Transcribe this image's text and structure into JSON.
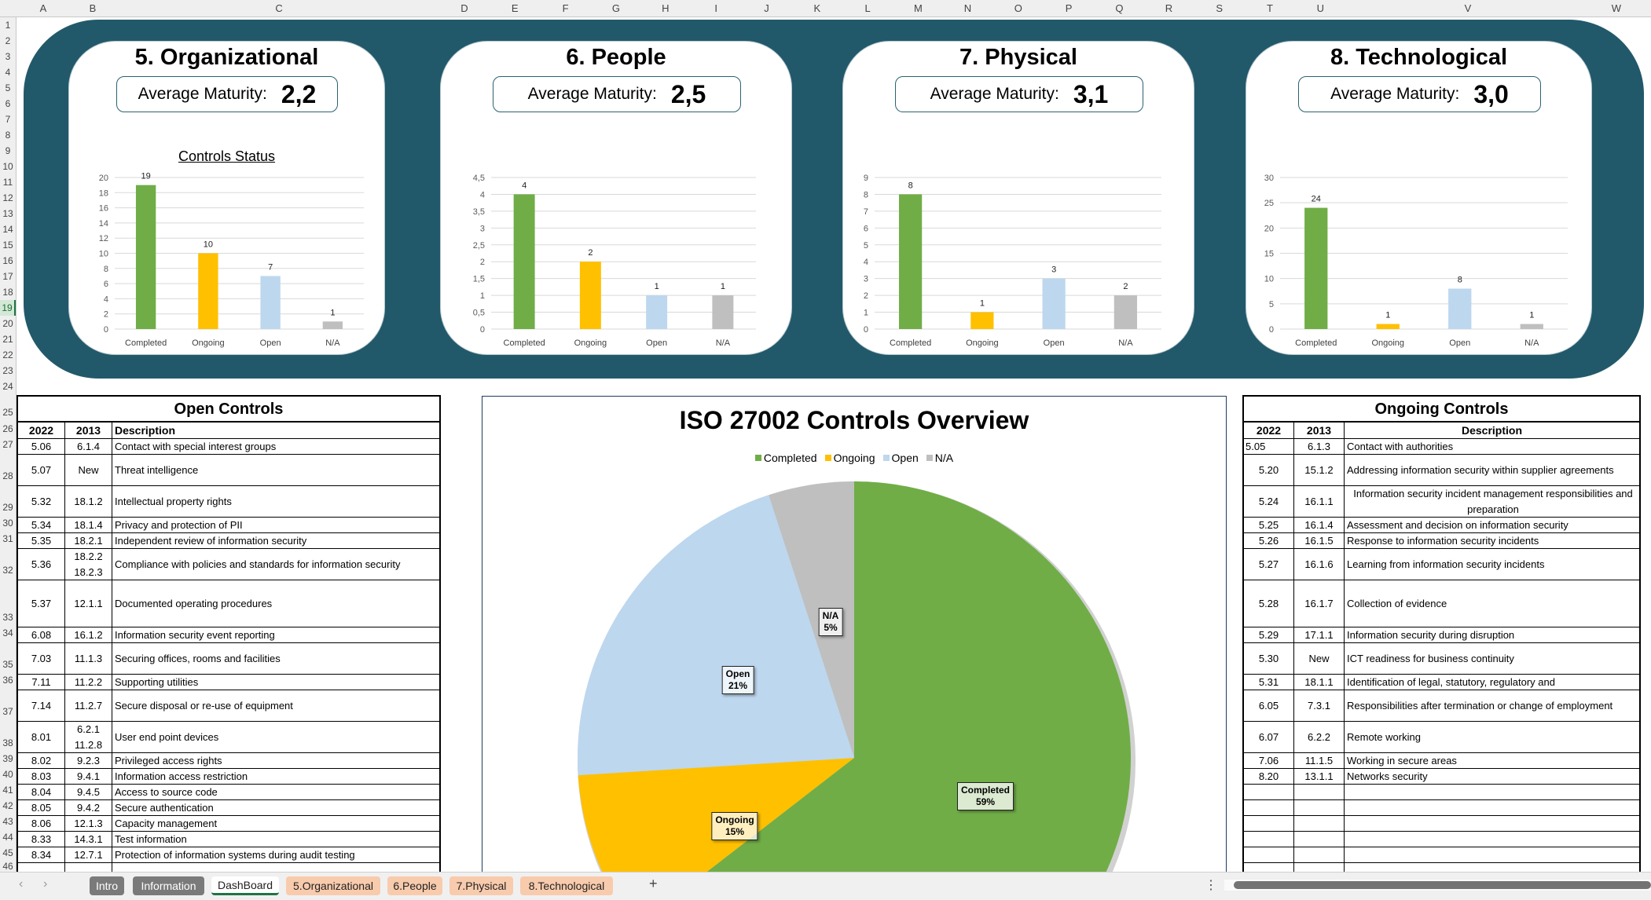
{
  "sheet": {
    "column_letters": [
      "A",
      "B",
      "C",
      "D",
      "E",
      "F",
      "G",
      "H",
      "I",
      "J",
      "K",
      "L",
      "M",
      "N",
      "O",
      "P",
      "Q",
      "R",
      "S",
      "T",
      "U",
      "V",
      "W"
    ],
    "row_numbers": [
      1,
      2,
      3,
      4,
      5,
      6,
      7,
      8,
      9,
      10,
      11,
      12,
      13,
      14,
      15,
      16,
      17,
      18,
      19,
      20,
      21,
      22,
      23,
      24,
      25,
      26,
      27,
      28,
      29,
      30,
      31,
      32,
      33,
      34,
      35,
      36,
      37,
      38,
      39,
      40,
      41,
      42,
      43,
      44,
      45,
      46
    ],
    "selected_row": 19
  },
  "colors": {
    "panel": "#22596a",
    "completed": "#70ad47",
    "ongoing": "#ffc000",
    "open": "#bdd7ee",
    "na": "#bfbfbf"
  },
  "cards": [
    {
      "title": "5. Organizational",
      "maturity_label": "Average Maturity:",
      "maturity_value": "2,2",
      "chart_title": "Controls Status",
      "chart_data": {
        "type": "bar",
        "categories": [
          "Completed",
          "Ongoing",
          "Open",
          "N/A"
        ],
        "values": [
          19,
          10,
          7,
          1
        ],
        "ylim": [
          0,
          20
        ],
        "yticks": [
          "0",
          "2",
          "4",
          "6",
          "8",
          "10",
          "12",
          "14",
          "16",
          "18",
          "20"
        ]
      }
    },
    {
      "title": "6. People",
      "maturity_label": "Average Maturity:",
      "maturity_value": "2,5",
      "chart_data": {
        "type": "bar",
        "categories": [
          "Completed",
          "Ongoing",
          "Open",
          "N/A"
        ],
        "values": [
          4,
          2,
          1,
          1
        ],
        "ylim": [
          0,
          4.5
        ],
        "yticks": [
          "0",
          "0,5",
          "1",
          "1,5",
          "2",
          "2,5",
          "3",
          "3,5",
          "4",
          "4,5"
        ]
      }
    },
    {
      "title": "7. Physical",
      "maturity_label": "Average Maturity:",
      "maturity_value": "3,1",
      "chart_data": {
        "type": "bar",
        "categories": [
          "Completed",
          "Ongoing",
          "Open",
          "N/A"
        ],
        "values": [
          8,
          1,
          3,
          2
        ],
        "ylim": [
          0,
          9
        ],
        "yticks": [
          "0",
          "1",
          "2",
          "3",
          "4",
          "5",
          "6",
          "7",
          "8",
          "9"
        ]
      }
    },
    {
      "title": "8. Technological",
      "maturity_label": "Average Maturity:",
      "maturity_value": "3,0",
      "chart_data": {
        "type": "bar",
        "categories": [
          "Completed",
          "Ongoing",
          "Open",
          "N/A"
        ],
        "values": [
          24,
          1,
          8,
          1
        ],
        "ylim": [
          0,
          30
        ],
        "yticks": [
          "0",
          "5",
          "10",
          "15",
          "20",
          "25",
          "30"
        ]
      }
    }
  ],
  "open_controls": {
    "title": "Open Controls",
    "headers": [
      "2022",
      "2013",
      "Description"
    ],
    "rows": [
      [
        "5.06",
        "6.1.4",
        "Contact with special interest groups"
      ],
      [
        "5.07",
        "New",
        "Threat intelligence"
      ],
      [
        "5.32",
        "18.1.2",
        "Intellectual property rights"
      ],
      [
        "5.34",
        "18.1.4",
        "Privacy and protection of PII"
      ],
      [
        "5.35",
        "18.2.1",
        "Independent review of information security"
      ],
      [
        "5.36",
        "18.2.2\n18.2.3",
        "Compliance with policies and standards for information security"
      ],
      [
        "5.37",
        "12.1.1",
        "Documented operating procedures"
      ],
      [
        "6.08",
        "16.1.2",
        "Information security event reporting"
      ],
      [
        "7.03",
        "11.1.3",
        "Securing offices, rooms and facilities"
      ],
      [
        "7.11",
        "11.2.2",
        "Supporting utilities"
      ],
      [
        "7.14",
        "11.2.7",
        "Secure disposal or re-use of equipment"
      ],
      [
        "8.01",
        "6.2.1\n11.2.8",
        "User end point devices"
      ],
      [
        "8.02",
        "9.2.3",
        "Privileged access rights"
      ],
      [
        "8.03",
        "9.4.1",
        "Information access restriction"
      ],
      [
        "8.04",
        "9.4.5",
        "Access to source code"
      ],
      [
        "8.05",
        "9.4.2",
        "Secure authentication"
      ],
      [
        "8.06",
        "12.1.3",
        "Capacity management"
      ],
      [
        "8.33",
        "14.3.1",
        "Test information"
      ],
      [
        "8.34",
        "12.7.1",
        "Protection of information systems during audit testing"
      ],
      [
        "",
        "",
        ""
      ]
    ]
  },
  "ongoing_controls": {
    "title": "Ongoing Controls",
    "headers": [
      "2022",
      "2013",
      "Description"
    ],
    "rows": [
      [
        "5.05",
        "6.1.3",
        "Contact with authorities"
      ],
      [
        "5.20",
        "15.1.2",
        "Addressing information security within supplier agreements"
      ],
      [
        "5.24",
        "16.1.1",
        "Information security incident management responsibilities and preparation"
      ],
      [
        "5.25",
        "16.1.4",
        "Assessment and decision on information security"
      ],
      [
        "5.26",
        "16.1.5",
        "Response to information security incidents"
      ],
      [
        "5.27",
        "16.1.6",
        "Learning from information security incidents"
      ],
      [
        "5.28",
        "16.1.7",
        "Collection of evidence"
      ],
      [
        "5.29",
        "17.1.1",
        "Information security during disruption"
      ],
      [
        "5.30",
        "New",
        "ICT readiness for business continuity"
      ],
      [
        "5.31",
        "18.1.1",
        "Identification of legal, statutory, regulatory and"
      ],
      [
        "6.05",
        "7.3.1",
        "Responsibilities after termination or change of employment"
      ],
      [
        "6.07",
        "6.2.2",
        "Remote working"
      ],
      [
        "7.06",
        "11.1.5",
        "Working in secure areas"
      ],
      [
        "8.20",
        "13.1.1",
        "Networks security"
      ],
      [
        "",
        "",
        ""
      ],
      [
        "",
        "",
        ""
      ],
      [
        "",
        "",
        ""
      ],
      [
        "",
        "",
        ""
      ],
      [
        "",
        "",
        ""
      ],
      [
        "",
        "",
        ""
      ]
    ]
  },
  "pie": {
    "title": "ISO 27002 Controls Overview",
    "chart_data": {
      "type": "pie",
      "categories": [
        "Completed",
        "Ongoing",
        "Open",
        "N/A"
      ],
      "values": [
        59,
        15,
        21,
        5
      ],
      "labels": [
        "Completed\n59%",
        "Ongoing\n15%",
        "Open\n21%",
        "N/A\n5%"
      ],
      "legend": "top"
    }
  },
  "tabs": [
    {
      "label": "Intro",
      "style": "gray"
    },
    {
      "label": "Information",
      "style": "gray"
    },
    {
      "label": "DashBoard",
      "style": "active"
    },
    {
      "label": "5.Organizational",
      "style": "orange"
    },
    {
      "label": "6.People",
      "style": "orange"
    },
    {
      "label": "7.Physical",
      "style": "orange"
    },
    {
      "label": "8.Technological",
      "style": "orange"
    }
  ],
  "tabbar": {
    "prev": "‹",
    "next": "›",
    "add": "+",
    "more": "⋮"
  }
}
